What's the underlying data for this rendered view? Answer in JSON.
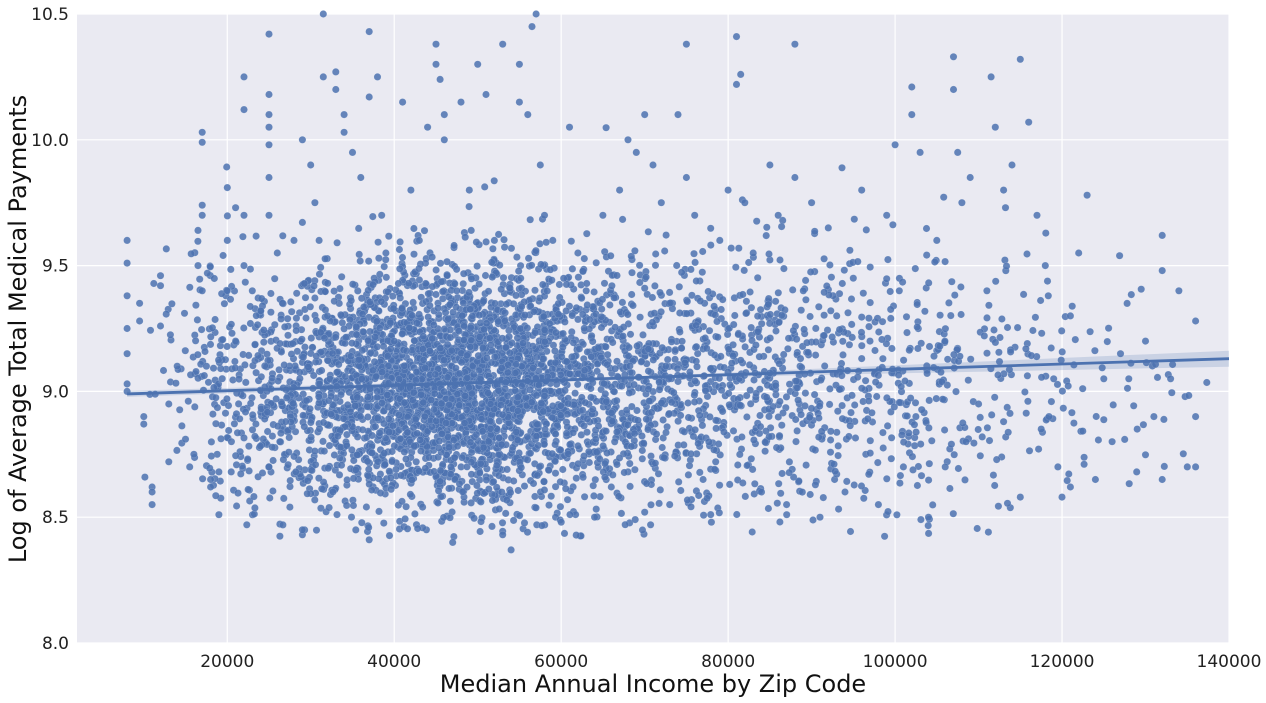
{
  "chart_data": {
    "type": "scatter",
    "title": "",
    "xlabel": "Median Annual Income by Zip Code",
    "ylabel": "Log of Average Total Medical Payments",
    "xlim": [
      2000,
      140000
    ],
    "ylim": [
      8.0,
      10.5
    ],
    "x_ticks": [
      20000,
      40000,
      60000,
      80000,
      100000,
      120000,
      140000
    ],
    "y_ticks": [
      8.0,
      8.5,
      9.0,
      9.5,
      10.0,
      10.5
    ],
    "x_tick_labels": [
      "20000",
      "40000",
      "60000",
      "80000",
      "100000",
      "120000",
      "140000"
    ],
    "y_tick_labels": [
      "8.0",
      "8.5",
      "9.0",
      "9.5",
      "10.0",
      "10.5"
    ],
    "grid": true,
    "background": "#eaeaf2",
    "point_color": "#4c72b0",
    "regression_line": {
      "x": [
        8000,
        140000
      ],
      "y": [
        8.99,
        9.13
      ],
      "color": "#4c72b0"
    },
    "points": [
      [
        8000,
        9.6
      ],
      [
        8000,
        9.51
      ],
      [
        8000,
        9.38
      ],
      [
        8000,
        9.25
      ],
      [
        8000,
        9.15
      ],
      [
        8000,
        9.03
      ],
      [
        8000,
        9.0
      ],
      [
        9500,
        9.35
      ],
      [
        9500,
        9.28
      ],
      [
        10000,
        8.9
      ],
      [
        10000,
        8.87
      ],
      [
        11000,
        8.62
      ],
      [
        11000,
        8.6
      ],
      [
        11000,
        8.55
      ],
      [
        12000,
        9.46
      ],
      [
        12000,
        9.42
      ],
      [
        12000,
        9.26
      ],
      [
        13000,
        8.72
      ],
      [
        13000,
        8.95
      ],
      [
        14000,
        9.1
      ],
      [
        15000,
        8.81
      ],
      [
        15500,
        8.7
      ],
      [
        16000,
        8.75
      ],
      [
        16500,
        9.64
      ],
      [
        16500,
        9.5
      ],
      [
        17000,
        10.03
      ],
      [
        17000,
        9.99
      ],
      [
        17000,
        9.74
      ],
      [
        17000,
        9.7
      ],
      [
        17000,
        9.4
      ],
      [
        17500,
        9.1
      ],
      [
        18000,
        8.62
      ],
      [
        18000,
        8.65
      ],
      [
        19000,
        8.51
      ],
      [
        19000,
        8.68
      ],
      [
        19500,
        9.54
      ],
      [
        20000,
        9.81
      ],
      [
        20000,
        9.6
      ],
      [
        20000,
        9.4
      ],
      [
        20500,
        8.8
      ],
      [
        21000,
        9.73
      ],
      [
        21000,
        9.2
      ],
      [
        22000,
        10.25
      ],
      [
        22000,
        10.12
      ],
      [
        22000,
        9.7
      ],
      [
        22000,
        9.5
      ],
      [
        22500,
        8.61
      ],
      [
        23000,
        9.4
      ],
      [
        24000,
        9.32
      ],
      [
        25000,
        10.42
      ],
      [
        25000,
        10.18
      ],
      [
        25000,
        10.1
      ],
      [
        25000,
        10.05
      ],
      [
        25000,
        9.98
      ],
      [
        25000,
        9.85
      ],
      [
        25000,
        9.7
      ],
      [
        25000,
        8.7
      ],
      [
        26000,
        9.55
      ],
      [
        27000,
        8.88
      ],
      [
        28000,
        9.6
      ],
      [
        29000,
        10.0
      ],
      [
        29000,
        8.43
      ],
      [
        29000,
        8.45
      ],
      [
        30000,
        9.9
      ],
      [
        30500,
        9.75
      ],
      [
        31000,
        9.6
      ],
      [
        31500,
        10.25
      ],
      [
        31500,
        10.5
      ],
      [
        32000,
        9.3
      ],
      [
        33000,
        10.27
      ],
      [
        33000,
        10.2
      ],
      [
        34000,
        10.1
      ],
      [
        34000,
        10.03
      ],
      [
        35000,
        9.95
      ],
      [
        36000,
        9.85
      ],
      [
        37000,
        10.43
      ],
      [
        37000,
        10.17
      ],
      [
        37000,
        8.41
      ],
      [
        38000,
        10.25
      ],
      [
        38500,
        9.7
      ],
      [
        39000,
        9.55
      ],
      [
        40000,
        9.2
      ],
      [
        41000,
        10.15
      ],
      [
        42000,
        9.8
      ],
      [
        43000,
        9.6
      ],
      [
        44000,
        10.05
      ],
      [
        45000,
        10.38
      ],
      [
        45000,
        10.3
      ],
      [
        45500,
        10.24
      ],
      [
        46000,
        10.1
      ],
      [
        46000,
        10.0
      ],
      [
        47000,
        8.4
      ],
      [
        47500,
        9.4
      ],
      [
        48000,
        10.15
      ],
      [
        49000,
        9.8
      ],
      [
        50000,
        10.3
      ],
      [
        51000,
        10.18
      ],
      [
        52000,
        9.6
      ],
      [
        53000,
        10.38
      ],
      [
        53000,
        8.43
      ],
      [
        54000,
        8.37
      ],
      [
        55000,
        10.3
      ],
      [
        55000,
        10.15
      ],
      [
        56000,
        10.1
      ],
      [
        56500,
        10.45
      ],
      [
        57000,
        10.5
      ],
      [
        57500,
        9.9
      ],
      [
        58000,
        9.7
      ],
      [
        59000,
        9.6
      ],
      [
        60000,
        8.48
      ],
      [
        61000,
        10.05
      ],
      [
        62000,
        9.55
      ],
      [
        63000,
        9.4
      ],
      [
        64000,
        8.5
      ],
      [
        65000,
        9.7
      ],
      [
        66000,
        8.62
      ],
      [
        67000,
        9.8
      ],
      [
        68000,
        10.0
      ],
      [
        69000,
        9.95
      ],
      [
        70000,
        10.1
      ],
      [
        70000,
        8.52
      ],
      [
        71000,
        9.9
      ],
      [
        72000,
        9.75
      ],
      [
        73000,
        8.55
      ],
      [
        74000,
        10.1
      ],
      [
        75000,
        10.38
      ],
      [
        75000,
        9.85
      ],
      [
        76000,
        9.7
      ],
      [
        77000,
        8.65
      ],
      [
        78000,
        8.48
      ],
      [
        79000,
        9.6
      ],
      [
        80000,
        9.8
      ],
      [
        81000,
        10.41
      ],
      [
        81000,
        10.22
      ],
      [
        81500,
        10.26
      ],
      [
        82000,
        9.75
      ],
      [
        83000,
        9.55
      ],
      [
        84000,
        8.6
      ],
      [
        85000,
        9.9
      ],
      [
        86000,
        9.7
      ],
      [
        87000,
        8.55
      ],
      [
        88000,
        10.38
      ],
      [
        88000,
        9.85
      ],
      [
        89000,
        9.4
      ],
      [
        90000,
        9.75
      ],
      [
        91000,
        8.5
      ],
      [
        92000,
        9.65
      ],
      [
        93000,
        9.3
      ],
      [
        94000,
        8.6
      ],
      [
        95000,
        9.45
      ],
      [
        96000,
        9.8
      ],
      [
        97000,
        9.2
      ],
      [
        98000,
        8.55
      ],
      [
        99000,
        9.7
      ],
      [
        100000,
        9.98
      ],
      [
        100500,
        9.4
      ],
      [
        101000,
        8.7
      ],
      [
        102000,
        10.21
      ],
      [
        102000,
        10.1
      ],
      [
        103000,
        9.95
      ],
      [
        104000,
        8.5
      ],
      [
        105000,
        9.6
      ],
      [
        106000,
        8.7
      ],
      [
        107000,
        10.33
      ],
      [
        107000,
        10.2
      ],
      [
        107500,
        9.95
      ],
      [
        108000,
        9.75
      ],
      [
        108500,
        8.8
      ],
      [
        109000,
        9.85
      ],
      [
        110000,
        8.95
      ],
      [
        111000,
        9.4
      ],
      [
        111500,
        10.25
      ],
      [
        112000,
        10.05
      ],
      [
        113000,
        9.8
      ],
      [
        114000,
        9.9
      ],
      [
        115000,
        10.32
      ],
      [
        115000,
        8.58
      ],
      [
        116000,
        10.07
      ],
      [
        117000,
        9.7
      ],
      [
        117500,
        8.85
      ],
      [
        118000,
        9.5
      ],
      [
        119000,
        9.05
      ],
      [
        119500,
        8.7
      ],
      [
        120000,
        8.58
      ],
      [
        121000,
        9.3
      ],
      [
        121000,
        8.62
      ],
      [
        122000,
        9.55
      ],
      [
        123000,
        9.78
      ],
      [
        124000,
        8.65
      ],
      [
        125000,
        9.05
      ],
      [
        126000,
        8.8
      ],
      [
        127000,
        9.15
      ],
      [
        128000,
        9.05
      ],
      [
        129000,
        8.85
      ],
      [
        130000,
        9.2
      ],
      [
        131000,
        8.9
      ],
      [
        132000,
        9.62
      ],
      [
        132000,
        9.48
      ],
      [
        132000,
        8.65
      ],
      [
        133000,
        9.05
      ],
      [
        134000,
        9.4
      ],
      [
        135000,
        8.7
      ],
      [
        136000,
        9.28
      ],
      [
        136000,
        8.9
      ],
      [
        136000,
        8.7
      ]
    ],
    "density_clusters": [
      {
        "x_mean": 40000,
        "x_sd": 9000,
        "y_mean": 9.02,
        "y_sd": 0.24,
        "n": 1700
      },
      {
        "x_mean": 52000,
        "x_sd": 7000,
        "y_mean": 9.02,
        "y_sd": 0.24,
        "n": 1100
      },
      {
        "x_mean": 65000,
        "x_sd": 9000,
        "y_mean": 9.03,
        "y_sd": 0.25,
        "n": 800
      },
      {
        "x_mean": 84000,
        "x_sd": 8000,
        "y_mean": 9.03,
        "y_sd": 0.26,
        "n": 500
      },
      {
        "x_mean": 103000,
        "x_sd": 7000,
        "y_mean": 9.05,
        "y_sd": 0.28,
        "n": 240
      },
      {
        "x_mean": 120000,
        "x_sd": 9000,
        "y_mean": 9.05,
        "y_sd": 0.28,
        "n": 110
      },
      {
        "x_mean": 22000,
        "x_sd": 5000,
        "y_mean": 9.0,
        "y_sd": 0.27,
        "n": 220
      }
    ]
  }
}
